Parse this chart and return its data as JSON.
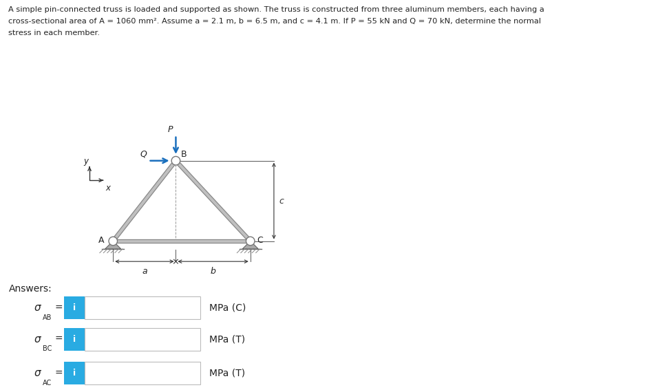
{
  "title_line1": "A simple pin-connected truss is loaded and supported as shown. The truss is constructed from three aluminum members, each having a",
  "title_line2": "cross-sectional area of A = 1060 mm². Assume a = 2.1 m, b = 6.5 m, and c = 4.1 m. If P = 55 kN and Q = 70 kN, determine the normal",
  "title_line3": "stress in each member.",
  "answers_label": "Answers:",
  "rows": [
    {
      "label": "σ",
      "sub": "AB",
      "unit": "MPa (C)"
    },
    {
      "label": "σ",
      "sub": "BC",
      "unit": "MPa (T)"
    },
    {
      "label": "σ",
      "sub": "AC",
      "unit": "MPa (T)"
    }
  ],
  "truss": {
    "A": [
      0.085,
      0.385
    ],
    "B": [
      0.245,
      0.59
    ],
    "C": [
      0.435,
      0.385
    ],
    "member_color": "#c0c0c0",
    "pin_color_outer": "#ffffff",
    "pin_color_inner": "#888888",
    "load_color": "#1a6fbd",
    "support_color": "#aaaaaa"
  },
  "bg_color": "#ffffff",
  "text_color": "#222222",
  "input_box_color": "#29abe2",
  "fig_width": 9.56,
  "fig_height": 5.7,
  "dpi": 100
}
